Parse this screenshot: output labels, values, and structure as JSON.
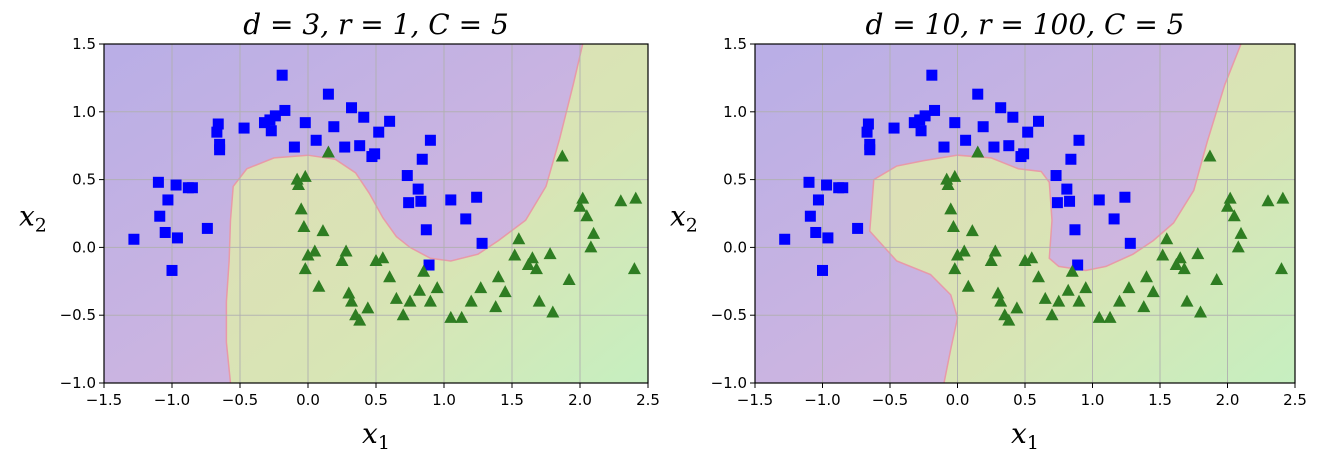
{
  "chart_data": [
    {
      "type": "scatter",
      "title": "d = 3, r = 1, C = 5",
      "xlabel": "x1",
      "ylabel": "x2",
      "xlim": [
        -1.5,
        2.5
      ],
      "ylim": [
        -1.0,
        1.5
      ],
      "xticks": [
        "−1.5",
        "−1.0",
        "−0.5",
        "0.0",
        "0.5",
        "1.0",
        "1.5",
        "2.0",
        "2.5"
      ],
      "yticks": [
        "−1.0",
        "−0.5",
        "0.0",
        "0.5",
        "1.0",
        "1.5"
      ],
      "grid": true,
      "background_classes": {
        "class0_color": "#c9b1e0",
        "class1_color": "#d7e6b4"
      },
      "boundary": [
        [
          -0.57,
          -1.0
        ],
        [
          -0.6,
          -0.7
        ],
        [
          -0.6,
          -0.4
        ],
        [
          -0.58,
          -0.1
        ],
        [
          -0.57,
          0.2
        ],
        [
          -0.55,
          0.45
        ],
        [
          -0.45,
          0.58
        ],
        [
          -0.25,
          0.66
        ],
        [
          0.0,
          0.68
        ],
        [
          0.2,
          0.65
        ],
        [
          0.35,
          0.55
        ],
        [
          0.45,
          0.4
        ],
        [
          0.55,
          0.22
        ],
        [
          0.65,
          0.08
        ],
        [
          0.75,
          0.0
        ],
        [
          0.9,
          -0.08
        ],
        [
          1.05,
          -0.1
        ],
        [
          1.25,
          -0.05
        ],
        [
          1.4,
          0.05
        ],
        [
          1.6,
          0.2
        ],
        [
          1.75,
          0.45
        ],
        [
          1.85,
          0.8
        ],
        [
          1.95,
          1.2
        ],
        [
          2.02,
          1.5
        ]
      ],
      "series": [
        {
          "marker": "square",
          "color": "#0000ff",
          "points": [
            [
              -1.28,
              0.06
            ],
            [
              -1.1,
              0.48
            ],
            [
              -1.09,
              0.23
            ],
            [
              -1.05,
              0.11
            ],
            [
              -1.03,
              0.35
            ],
            [
              -1.0,
              -0.17
            ],
            [
              -0.97,
              0.46
            ],
            [
              -0.96,
              0.07
            ],
            [
              -0.88,
              0.44
            ],
            [
              -0.85,
              0.44
            ],
            [
              -0.74,
              0.14
            ],
            [
              -0.67,
              0.85
            ],
            [
              -0.66,
              0.91
            ],
            [
              -0.65,
              0.76
            ],
            [
              -0.65,
              0.72
            ],
            [
              -0.47,
              0.88
            ],
            [
              -0.32,
              0.92
            ],
            [
              -0.28,
              0.94
            ],
            [
              -0.27,
              0.86
            ],
            [
              -0.24,
              0.97
            ],
            [
              -0.19,
              1.27
            ],
            [
              -0.17,
              1.01
            ],
            [
              -0.1,
              0.74
            ],
            [
              -0.02,
              0.92
            ],
            [
              0.06,
              0.79
            ],
            [
              0.15,
              1.13
            ],
            [
              0.19,
              0.89
            ],
            [
              0.27,
              0.74
            ],
            [
              0.32,
              1.03
            ],
            [
              0.38,
              0.75
            ],
            [
              0.41,
              0.96
            ],
            [
              0.47,
              0.67
            ],
            [
              0.49,
              0.69
            ],
            [
              0.52,
              0.85
            ],
            [
              0.6,
              0.93
            ],
            [
              0.73,
              0.53
            ],
            [
              0.74,
              0.33
            ],
            [
              0.81,
              0.43
            ],
            [
              0.83,
              0.34
            ],
            [
              0.84,
              0.65
            ],
            [
              0.87,
              0.13
            ],
            [
              0.89,
              -0.13
            ],
            [
              0.9,
              0.79
            ],
            [
              1.05,
              0.35
            ],
            [
              1.16,
              0.21
            ],
            [
              1.24,
              0.37
            ],
            [
              1.28,
              0.03
            ]
          ]
        },
        {
          "marker": "triangle",
          "color": "#2e7d22",
          "points": [
            [
              -0.07,
              0.46
            ],
            [
              -0.05,
              0.28
            ],
            [
              -0.03,
              0.15
            ],
            [
              -0.02,
              -0.16
            ],
            [
              0.0,
              -0.06
            ],
            [
              0.05,
              -0.03
            ],
            [
              0.08,
              -0.29
            ],
            [
              0.11,
              0.12
            ],
            [
              0.15,
              0.7
            ],
            [
              0.25,
              -0.1
            ],
            [
              0.28,
              -0.03
            ],
            [
              0.3,
              -0.34
            ],
            [
              0.32,
              -0.4
            ],
            [
              0.35,
              -0.5
            ],
            [
              0.38,
              -0.54
            ],
            [
              0.44,
              -0.45
            ],
            [
              0.5,
              -0.1
            ],
            [
              0.55,
              -0.08
            ],
            [
              0.6,
              -0.22
            ],
            [
              0.65,
              -0.38
            ],
            [
              0.7,
              -0.5
            ],
            [
              0.75,
              -0.4
            ],
            [
              0.82,
              -0.32
            ],
            [
              0.85,
              -0.18
            ],
            [
              0.9,
              -0.4
            ],
            [
              0.95,
              -0.3
            ],
            [
              1.05,
              -0.52
            ],
            [
              1.13,
              -0.52
            ],
            [
              1.2,
              -0.4
            ],
            [
              1.27,
              -0.3
            ],
            [
              1.38,
              -0.44
            ],
            [
              1.4,
              -0.22
            ],
            [
              1.45,
              -0.33
            ],
            [
              1.52,
              -0.06
            ],
            [
              1.55,
              0.06
            ],
            [
              1.62,
              -0.13
            ],
            [
              1.65,
              -0.08
            ],
            [
              1.68,
              -0.16
            ],
            [
              1.7,
              -0.4
            ],
            [
              1.78,
              -0.05
            ],
            [
              1.8,
              -0.48
            ],
            [
              1.87,
              0.67
            ],
            [
              1.92,
              -0.24
            ],
            [
              2.0,
              0.3
            ],
            [
              2.02,
              0.36
            ],
            [
              2.05,
              0.23
            ],
            [
              2.08,
              0.0
            ],
            [
              2.1,
              0.1
            ],
            [
              2.3,
              0.34
            ],
            [
              2.41,
              0.36
            ],
            [
              2.4,
              -0.16
            ],
            [
              -0.02,
              0.52
            ],
            [
              -0.08,
              0.5
            ]
          ]
        }
      ]
    },
    {
      "type": "scatter",
      "title": "d = 10, r = 100, C = 5",
      "xlabel": "x1",
      "ylabel": "x2",
      "xlim": [
        -1.5,
        2.5
      ],
      "ylim": [
        -1.0,
        1.5
      ],
      "xticks": [
        "−1.5",
        "−1.0",
        "−0.5",
        "0.0",
        "0.5",
        "1.0",
        "1.5",
        "2.0",
        "2.5"
      ],
      "yticks": [
        "−1.0",
        "−0.5",
        "0.0",
        "0.5",
        "1.0",
        "1.5"
      ],
      "grid": true,
      "background_classes": {
        "class0_color": "#c9b1e0",
        "class1_color": "#d7e6b4"
      },
      "boundary": [
        [
          -0.1,
          -1.0
        ],
        [
          -0.05,
          -0.75
        ],
        [
          0.0,
          -0.52
        ],
        [
          -0.05,
          -0.35
        ],
        [
          -0.2,
          -0.2
        ],
        [
          -0.45,
          -0.1
        ],
        [
          -0.65,
          0.12
        ],
        [
          -0.62,
          0.5
        ],
        [
          -0.45,
          0.6
        ],
        [
          -0.25,
          0.64
        ],
        [
          0.0,
          0.68
        ],
        [
          0.25,
          0.66
        ],
        [
          0.45,
          0.58
        ],
        [
          0.62,
          0.56
        ],
        [
          0.68,
          0.48
        ],
        [
          0.7,
          0.2
        ],
        [
          0.68,
          -0.08
        ],
        [
          0.75,
          -0.14
        ],
        [
          0.95,
          -0.17
        ],
        [
          1.1,
          -0.14
        ],
        [
          1.3,
          -0.05
        ],
        [
          1.45,
          0.05
        ],
        [
          1.6,
          0.18
        ],
        [
          1.75,
          0.42
        ],
        [
          1.85,
          0.78
        ],
        [
          1.98,
          1.2
        ],
        [
          2.1,
          1.5
        ]
      ],
      "series": [
        {
          "marker": "square",
          "color": "#0000ff",
          "points": [
            [
              -1.28,
              0.06
            ],
            [
              -1.1,
              0.48
            ],
            [
              -1.09,
              0.23
            ],
            [
              -1.05,
              0.11
            ],
            [
              -1.03,
              0.35
            ],
            [
              -1.0,
              -0.17
            ],
            [
              -0.97,
              0.46
            ],
            [
              -0.96,
              0.07
            ],
            [
              -0.88,
              0.44
            ],
            [
              -0.85,
              0.44
            ],
            [
              -0.74,
              0.14
            ],
            [
              -0.67,
              0.85
            ],
            [
              -0.66,
              0.91
            ],
            [
              -0.65,
              0.76
            ],
            [
              -0.65,
              0.72
            ],
            [
              -0.47,
              0.88
            ],
            [
              -0.32,
              0.92
            ],
            [
              -0.28,
              0.94
            ],
            [
              -0.27,
              0.86
            ],
            [
              -0.24,
              0.97
            ],
            [
              -0.19,
              1.27
            ],
            [
              -0.17,
              1.01
            ],
            [
              -0.1,
              0.74
            ],
            [
              -0.02,
              0.92
            ],
            [
              0.06,
              0.79
            ],
            [
              0.15,
              1.13
            ],
            [
              0.19,
              0.89
            ],
            [
              0.27,
              0.74
            ],
            [
              0.32,
              1.03
            ],
            [
              0.38,
              0.75
            ],
            [
              0.41,
              0.96
            ],
            [
              0.47,
              0.67
            ],
            [
              0.49,
              0.69
            ],
            [
              0.52,
              0.85
            ],
            [
              0.6,
              0.93
            ],
            [
              0.73,
              0.53
            ],
            [
              0.74,
              0.33
            ],
            [
              0.81,
              0.43
            ],
            [
              0.83,
              0.34
            ],
            [
              0.84,
              0.65
            ],
            [
              0.87,
              0.13
            ],
            [
              0.89,
              -0.13
            ],
            [
              0.9,
              0.79
            ],
            [
              1.05,
              0.35
            ],
            [
              1.16,
              0.21
            ],
            [
              1.24,
              0.37
            ],
            [
              1.28,
              0.03
            ]
          ]
        },
        {
          "marker": "triangle",
          "color": "#2e7d22",
          "points": [
            [
              -0.07,
              0.46
            ],
            [
              -0.05,
              0.28
            ],
            [
              -0.03,
              0.15
            ],
            [
              -0.02,
              -0.16
            ],
            [
              0.0,
              -0.06
            ],
            [
              0.05,
              -0.03
            ],
            [
              0.08,
              -0.29
            ],
            [
              0.11,
              0.12
            ],
            [
              0.15,
              0.7
            ],
            [
              0.25,
              -0.1
            ],
            [
              0.28,
              -0.03
            ],
            [
              0.3,
              -0.34
            ],
            [
              0.32,
              -0.4
            ],
            [
              0.35,
              -0.5
            ],
            [
              0.38,
              -0.54
            ],
            [
              0.44,
              -0.45
            ],
            [
              0.5,
              -0.1
            ],
            [
              0.55,
              -0.08
            ],
            [
              0.6,
              -0.22
            ],
            [
              0.65,
              -0.38
            ],
            [
              0.7,
              -0.5
            ],
            [
              0.75,
              -0.4
            ],
            [
              0.82,
              -0.32
            ],
            [
              0.85,
              -0.18
            ],
            [
              0.9,
              -0.4
            ],
            [
              0.95,
              -0.3
            ],
            [
              1.05,
              -0.52
            ],
            [
              1.13,
              -0.52
            ],
            [
              1.2,
              -0.4
            ],
            [
              1.27,
              -0.3
            ],
            [
              1.38,
              -0.44
            ],
            [
              1.4,
              -0.22
            ],
            [
              1.45,
              -0.33
            ],
            [
              1.52,
              -0.06
            ],
            [
              1.55,
              0.06
            ],
            [
              1.62,
              -0.13
            ],
            [
              1.65,
              -0.08
            ],
            [
              1.68,
              -0.16
            ],
            [
              1.7,
              -0.4
            ],
            [
              1.78,
              -0.05
            ],
            [
              1.8,
              -0.48
            ],
            [
              1.87,
              0.67
            ],
            [
              1.92,
              -0.24
            ],
            [
              2.0,
              0.3
            ],
            [
              2.02,
              0.36
            ],
            [
              2.05,
              0.23
            ],
            [
              2.08,
              0.0
            ],
            [
              2.1,
              0.1
            ],
            [
              2.3,
              0.34
            ],
            [
              2.41,
              0.36
            ],
            [
              2.4,
              -0.16
            ],
            [
              -0.02,
              0.52
            ],
            [
              -0.08,
              0.5
            ]
          ]
        }
      ]
    }
  ]
}
